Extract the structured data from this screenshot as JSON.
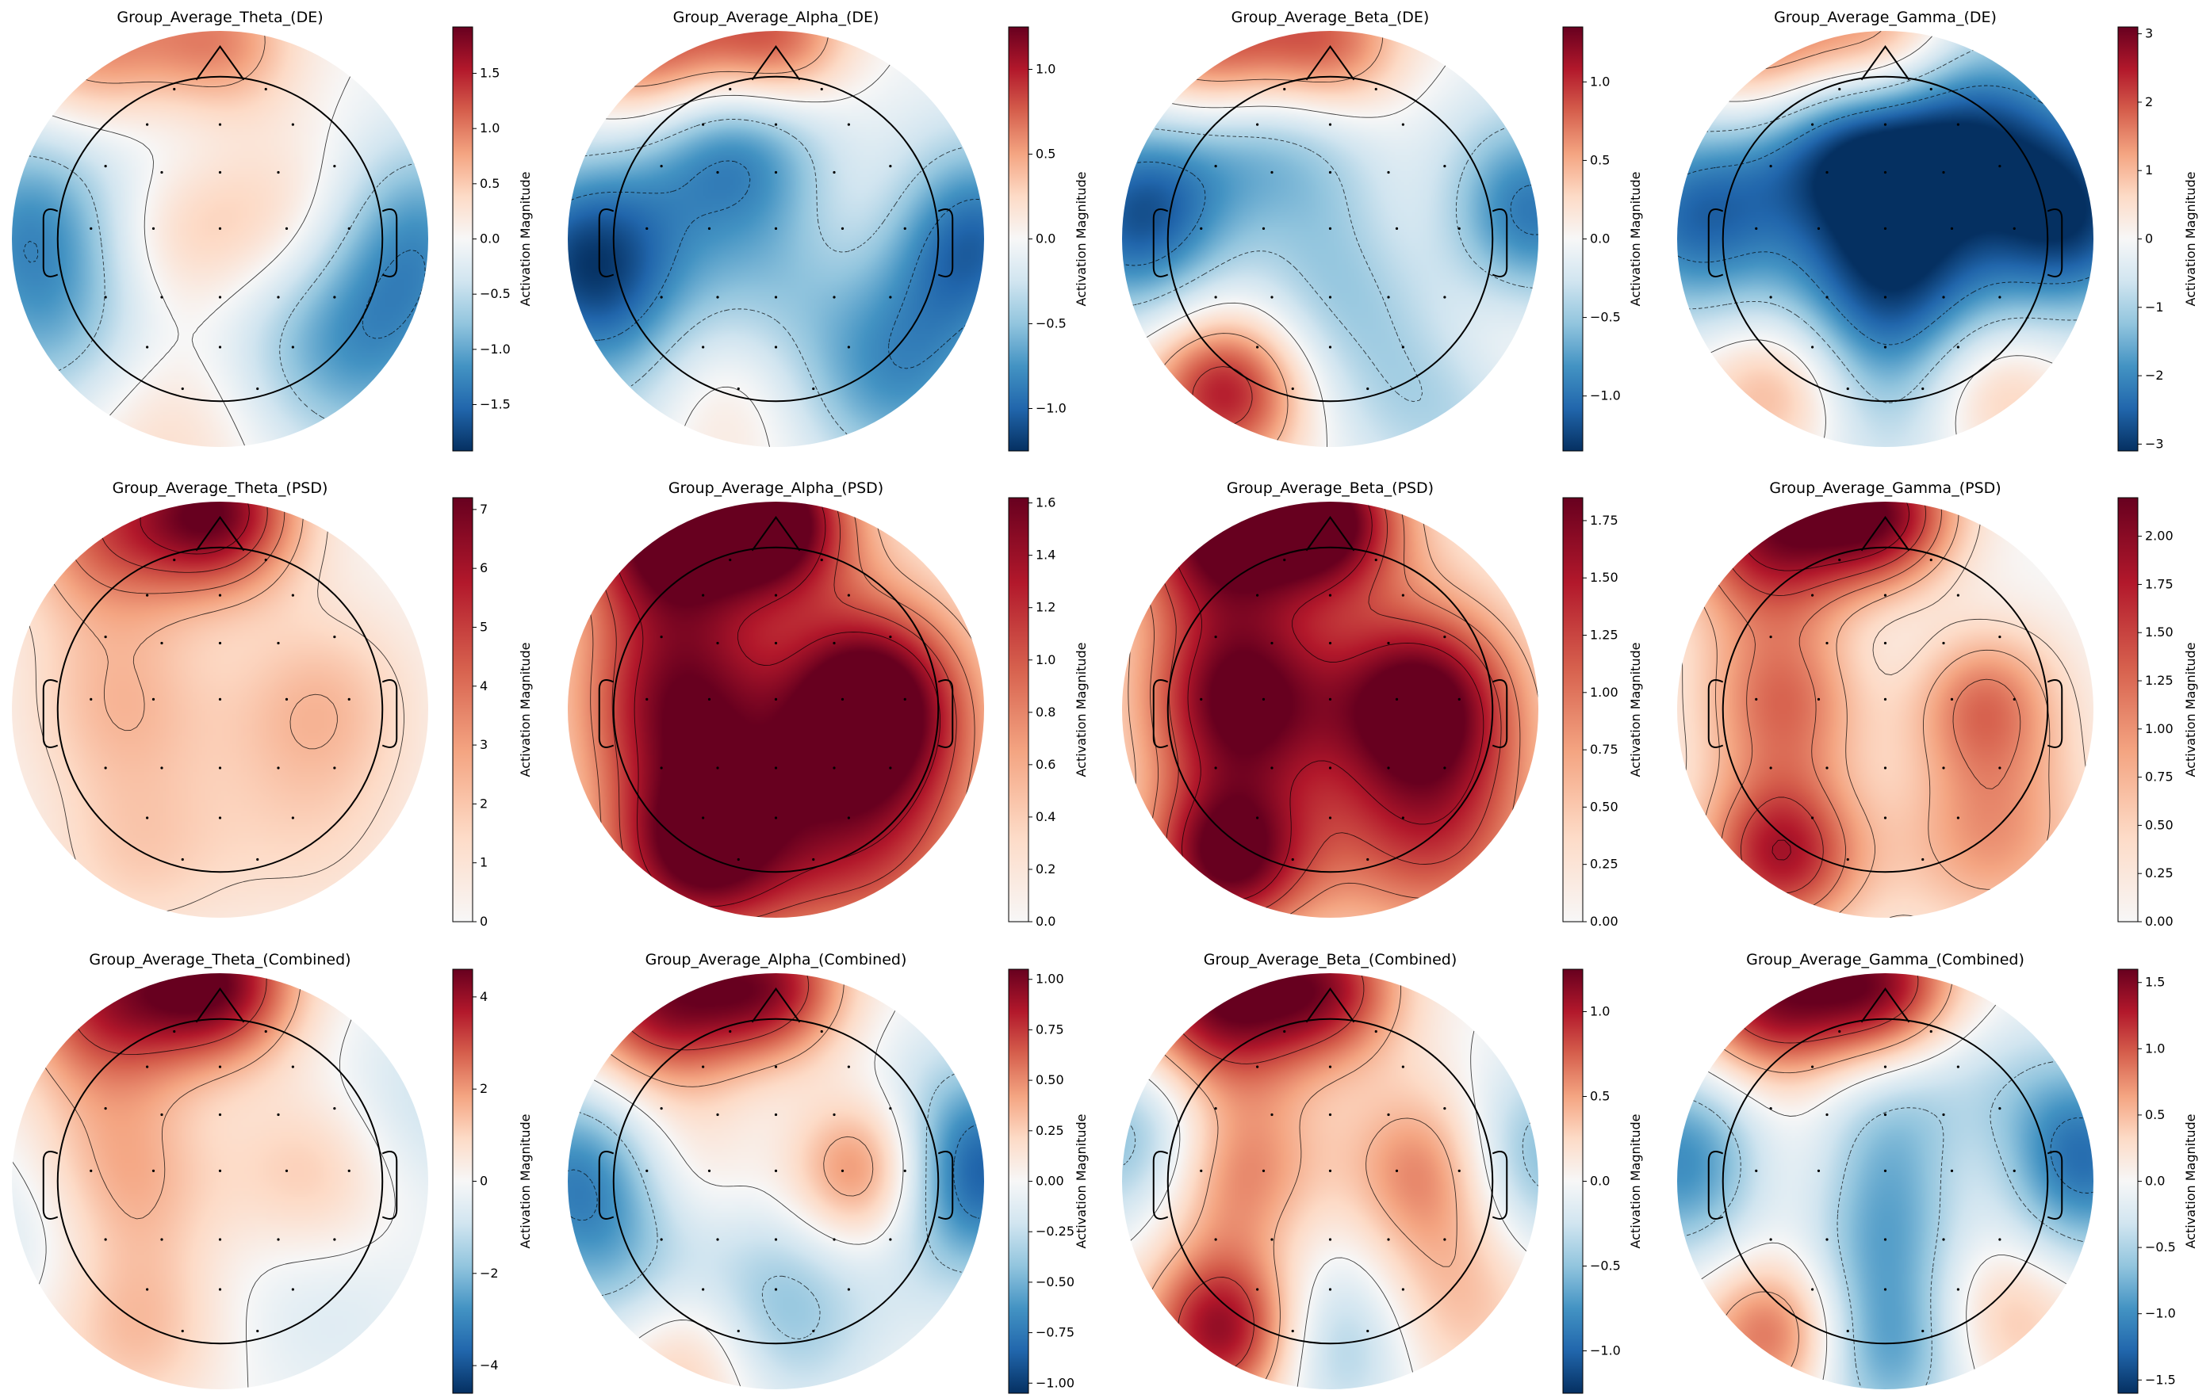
{
  "figure": {
    "description_free": true,
    "colormap": "RdBu_r",
    "colors": {
      "negative_extreme": "#053061",
      "negative_mid": "#4393c3",
      "neutral": "#f7f7f7",
      "positive_mid": "#d6604d",
      "positive_extreme": "#67001f",
      "contour": "#000000"
    }
  },
  "chart_data": [
    {
      "type": "heatmap",
      "title": "Group_Average_Theta_(DE)",
      "colorbar_label": "Activation Magnitude",
      "vmin": -1.92,
      "vmax": 1.92,
      "ticks": [
        1.5,
        1.0,
        0.5,
        0.0,
        -0.5,
        -1.0,
        -1.5
      ],
      "tick_labels": [
        "1.5",
        "1.0",
        "0.5",
        "0.0",
        "−0.5",
        "−1.0",
        "−1.5"
      ],
      "sources": [
        [
          -0.22,
          0.05,
          1.0,
          0.13
        ],
        [
          0.42,
          0.05,
          1.0,
          0.13
        ],
        [
          -0.55,
          0.88,
          1.3,
          0.1
        ],
        [
          0.0,
          0.93,
          1.0,
          0.07
        ],
        [
          -0.3,
          -0.8,
          0.6,
          0.15
        ],
        [
          -0.9,
          0.1,
          -1.0,
          0.12
        ],
        [
          0.9,
          0.05,
          -1.1,
          0.12
        ],
        [
          -0.75,
          -0.45,
          -0.9,
          0.15
        ],
        [
          0.7,
          -0.5,
          -0.9,
          0.15
        ],
        [
          0.0,
          0.1,
          -0.4,
          0.2
        ],
        [
          -0.35,
          0.65,
          -0.7,
          0.12
        ],
        [
          0.3,
          -0.3,
          -0.5,
          0.2
        ]
      ]
    },
    {
      "type": "heatmap",
      "title": "Group_Average_Alpha_(DE)",
      "colorbar_label": "Activation Magnitude",
      "vmin": -1.25,
      "vmax": 1.25,
      "ticks": [
        1.0,
        0.5,
        0.0,
        -0.5,
        -1.0
      ],
      "tick_labels": [
        "1.0",
        "0.5",
        "0.0",
        "−0.5",
        "−1.0"
      ],
      "sources": [
        [
          0.45,
          0.1,
          0.7,
          0.12
        ],
        [
          -0.45,
          0.05,
          0.3,
          0.1
        ],
        [
          -0.55,
          0.88,
          1.1,
          0.1
        ],
        [
          0.0,
          0.93,
          0.9,
          0.07
        ],
        [
          -0.4,
          -0.7,
          0.8,
          0.12
        ],
        [
          -0.9,
          -0.1,
          -1.1,
          0.12
        ],
        [
          0.9,
          0.0,
          -1.1,
          0.12
        ],
        [
          0.0,
          0.0,
          -0.8,
          0.25
        ],
        [
          -0.3,
          0.55,
          -0.8,
          0.12
        ],
        [
          -0.6,
          -0.7,
          -0.7,
          0.12
        ],
        [
          0.6,
          -0.7,
          -0.6,
          0.12
        ]
      ]
    },
    {
      "type": "heatmap",
      "title": "Group_Average_Beta_(DE)",
      "colorbar_label": "Activation Magnitude",
      "vmin": -1.35,
      "vmax": 1.35,
      "ticks": [
        1.0,
        0.5,
        0.0,
        -0.5,
        -1.0
      ],
      "tick_labels": [
        "1.0",
        "0.5",
        "0.0",
        "−0.5",
        "−1.0"
      ],
      "sources": [
        [
          -0.45,
          0.05,
          0.5,
          0.1
        ],
        [
          0.5,
          0.1,
          0.6,
          0.1
        ],
        [
          -0.55,
          0.88,
          1.2,
          0.1
        ],
        [
          -0.5,
          -0.72,
          1.2,
          0.08
        ],
        [
          0.0,
          0.93,
          0.8,
          0.07
        ],
        [
          -0.9,
          0.1,
          -1.2,
          0.12
        ],
        [
          0.9,
          0.1,
          -1.2,
          0.12
        ],
        [
          0.0,
          -0.1,
          -0.7,
          0.2
        ],
        [
          -0.4,
          0.55,
          -0.8,
          0.12
        ],
        [
          0.6,
          -0.7,
          -0.6,
          0.12
        ],
        [
          0.75,
          -0.45,
          0.6,
          0.1
        ]
      ]
    },
    {
      "type": "heatmap",
      "title": "Group_Average_Gamma_(DE)",
      "colorbar_label": "Activation Magnitude",
      "vmin": -3.1,
      "vmax": 3.1,
      "ticks": [
        3,
        2,
        1,
        0,
        -1,
        -2,
        -3
      ],
      "tick_labels": [
        "3",
        "2",
        "1",
        "0",
        "−1",
        "−2",
        "−3"
      ],
      "sources": [
        [
          -0.45,
          0.05,
          1.2,
          0.1
        ],
        [
          0.45,
          0.05,
          0.9,
          0.08
        ],
        [
          -0.55,
          0.88,
          2.3,
          0.1
        ],
        [
          0.0,
          0.93,
          1.8,
          0.07
        ],
        [
          -0.5,
          -0.7,
          1.8,
          0.08
        ],
        [
          0.5,
          -0.7,
          1.5,
          0.08
        ],
        [
          0.0,
          0.0,
          -2.8,
          0.2
        ],
        [
          -0.9,
          0.1,
          -2.4,
          0.12
        ],
        [
          0.9,
          0.1,
          -2.6,
          0.12
        ],
        [
          -0.3,
          0.5,
          -2.0,
          0.12
        ],
        [
          0.4,
          0.5,
          -2.0,
          0.15
        ],
        [
          0.0,
          -0.6,
          -1.2,
          0.2
        ]
      ]
    },
    {
      "type": "heatmap",
      "title": "Group_Average_Theta_(PSD)",
      "colorbar_label": "Activation Magnitude",
      "vmin": 0.0,
      "vmax": 7.2,
      "ticks": [
        7,
        6,
        5,
        4,
        3,
        2,
        1,
        0
      ],
      "tick_labels": [
        "7",
        "6",
        "5",
        "4",
        "3",
        "2",
        "1",
        "0"
      ],
      "sources": [
        [
          0.0,
          0.95,
          6.5,
          0.08
        ],
        [
          -0.55,
          0.88,
          4.0,
          0.1
        ],
        [
          -0.45,
          0.05,
          2.6,
          0.12
        ],
        [
          0.45,
          0.05,
          2.5,
          0.12
        ],
        [
          -0.4,
          -0.7,
          1.6,
          0.1
        ],
        [
          0.4,
          -0.6,
          1.2,
          0.15
        ],
        [
          0.0,
          0.2,
          -0.8,
          0.2
        ]
      ]
    },
    {
      "type": "heatmap",
      "title": "Group_Average_Alpha_(PSD)",
      "colorbar_label": "Activation Magnitude",
      "vmin": 0.0,
      "vmax": 1.62,
      "ticks": [
        1.6,
        1.4,
        1.2,
        1.0,
        0.8,
        0.6,
        0.4,
        0.2,
        0.0
      ],
      "tick_labels": [
        "1.6",
        "1.4",
        "1.2",
        "1.0",
        "0.8",
        "0.6",
        "0.4",
        "0.2",
        "0.0"
      ],
      "sources": [
        [
          0.45,
          0.05,
          1.4,
          0.1
        ],
        [
          -0.45,
          0.05,
          1.1,
          0.12
        ],
        [
          -0.55,
          0.88,
          1.5,
          0.1
        ],
        [
          0.0,
          0.93,
          1.5,
          0.07
        ],
        [
          -0.4,
          -0.7,
          1.3,
          0.1
        ],
        [
          0.4,
          -0.6,
          0.9,
          0.2
        ],
        [
          0.0,
          0.0,
          0.6,
          0.5
        ],
        [
          0.0,
          0.1,
          -0.3,
          0.1
        ]
      ]
    },
    {
      "type": "heatmap",
      "title": "Group_Average_Beta_(PSD)",
      "colorbar_label": "Activation Magnitude",
      "vmin": 0.0,
      "vmax": 1.85,
      "ticks": [
        1.75,
        1.5,
        1.25,
        1.0,
        0.75,
        0.5,
        0.25,
        0.0
      ],
      "tick_labels": [
        "1.75",
        "1.50",
        "1.25",
        "1.00",
        "0.75",
        "0.50",
        "0.25",
        "0.00"
      ],
      "sources": [
        [
          -0.45,
          0.05,
          1.5,
          0.1
        ],
        [
          0.45,
          0.05,
          1.5,
          0.1
        ],
        [
          -0.55,
          0.88,
          1.7,
          0.1
        ],
        [
          0.0,
          0.93,
          1.6,
          0.07
        ],
        [
          -0.5,
          -0.72,
          1.7,
          0.08
        ],
        [
          0.5,
          -0.6,
          1.0,
          0.15
        ],
        [
          0.0,
          0.0,
          0.5,
          0.5
        ]
      ]
    },
    {
      "type": "heatmap",
      "title": "Group_Average_Gamma_(PSD)",
      "colorbar_label": "Activation Magnitude",
      "vmin": 0.0,
      "vmax": 2.2,
      "ticks": [
        2.0,
        1.75,
        1.5,
        1.25,
        1.0,
        0.75,
        0.5,
        0.25,
        0.0
      ],
      "tick_labels": [
        "2.00",
        "1.75",
        "1.50",
        "1.25",
        "1.00",
        "0.75",
        "0.50",
        "0.25",
        "0.00"
      ],
      "sources": [
        [
          -0.45,
          0.05,
          1.5,
          0.1
        ],
        [
          0.45,
          0.05,
          1.4,
          0.08
        ],
        [
          -0.55,
          0.88,
          2.0,
          0.1
        ],
        [
          0.0,
          0.93,
          1.9,
          0.07
        ],
        [
          -0.5,
          -0.7,
          1.8,
          0.08
        ],
        [
          0.5,
          -0.6,
          1.0,
          0.12
        ],
        [
          0.0,
          0.15,
          -0.6,
          0.2
        ]
      ]
    },
    {
      "type": "heatmap",
      "title": "Group_Average_Theta_(Combined)",
      "colorbar_label": "Activation Magnitude",
      "vmin": -4.6,
      "vmax": 4.6,
      "ticks": [
        4,
        2,
        0,
        -2,
        -4
      ],
      "tick_labels": [
        "4",
        "2",
        "0",
        "−2",
        "−4"
      ],
      "sources": [
        [
          -0.45,
          0.05,
          2.4,
          0.12
        ],
        [
          0.45,
          0.05,
          2.2,
          0.12
        ],
        [
          0.0,
          0.95,
          4.2,
          0.08
        ],
        [
          -0.55,
          0.88,
          3.4,
          0.1
        ],
        [
          -0.4,
          -0.7,
          1.5,
          0.1
        ],
        [
          0.0,
          0.2,
          -1.0,
          0.2
        ],
        [
          0.9,
          0.3,
          -1.2,
          0.12
        ],
        [
          -0.9,
          -0.2,
          -1.0,
          0.12
        ],
        [
          0.5,
          -0.5,
          -0.8,
          0.15
        ]
      ]
    },
    {
      "type": "heatmap",
      "title": "Group_Average_Alpha_(Combined)",
      "colorbar_label": "Activation Magnitude",
      "vmin": -1.05,
      "vmax": 1.05,
      "ticks": [
        1.0,
        0.75,
        0.5,
        0.25,
        0.0,
        -0.25,
        -0.5,
        -0.75,
        -1.0
      ],
      "tick_labels": [
        "1.00",
        "0.75",
        "0.50",
        "0.25",
        "0.00",
        "−0.25",
        "−0.50",
        "−0.75",
        "−1.00"
      ],
      "sources": [
        [
          0.45,
          0.05,
          1.0,
          0.08
        ],
        [
          -0.45,
          0.05,
          0.5,
          0.1
        ],
        [
          -0.55,
          0.88,
          0.95,
          0.1
        ],
        [
          0.0,
          0.93,
          0.8,
          0.07
        ],
        [
          -0.4,
          -0.75,
          0.9,
          0.1
        ],
        [
          0.9,
          0.05,
          -1.0,
          0.12
        ],
        [
          -0.9,
          0.0,
          -0.8,
          0.12
        ],
        [
          0.0,
          0.0,
          -0.3,
          0.25
        ],
        [
          -0.1,
          -0.7,
          -0.6,
          0.1
        ],
        [
          -0.6,
          -0.6,
          -0.5,
          0.1
        ]
      ]
    },
    {
      "type": "heatmap",
      "title": "Group_Average_Beta_(Combined)",
      "colorbar_label": "Activation Magnitude",
      "vmin": -1.25,
      "vmax": 1.25,
      "ticks": [
        1.0,
        0.5,
        0.0,
        -0.5,
        -1.0
      ],
      "tick_labels": [
        "1.0",
        "0.5",
        "0.0",
        "−0.5",
        "−1.0"
      ],
      "sources": [
        [
          -0.45,
          0.05,
          0.9,
          0.1
        ],
        [
          0.5,
          0.05,
          1.0,
          0.1
        ],
        [
          -0.55,
          0.88,
          1.2,
          0.1
        ],
        [
          -0.5,
          -0.72,
          1.2,
          0.08
        ],
        [
          0.0,
          0.93,
          0.9,
          0.07
        ],
        [
          -0.9,
          0.2,
          -0.7,
          0.1
        ],
        [
          0.9,
          0.1,
          -0.8,
          0.1
        ],
        [
          0.0,
          -0.1,
          -0.3,
          0.2
        ],
        [
          0.0,
          -0.8,
          -0.5,
          0.08
        ],
        [
          0.6,
          -0.6,
          0.4,
          0.1
        ]
      ]
    },
    {
      "type": "heatmap",
      "title": "Group_Average_Gamma_(Combined)",
      "colorbar_label": "Activation Magnitude",
      "vmin": -1.6,
      "vmax": 1.6,
      "ticks": [
        1.5,
        1.0,
        0.5,
        0.0,
        -0.5,
        -1.0,
        -1.5
      ],
      "tick_labels": [
        "1.5",
        "1.0",
        "0.5",
        "0.0",
        "−0.5",
        "−1.0",
        "−1.5"
      ],
      "sources": [
        [
          -0.45,
          0.05,
          1.1,
          0.1
        ],
        [
          0.45,
          0.05,
          0.9,
          0.08
        ],
        [
          -0.55,
          0.88,
          1.5,
          0.1
        ],
        [
          0.0,
          0.93,
          1.3,
          0.07
        ],
        [
          -0.5,
          -0.72,
          1.2,
          0.08
        ],
        [
          0.5,
          -0.6,
          0.8,
          0.1
        ],
        [
          0.0,
          0.0,
          -1.4,
          0.2
        ],
        [
          -0.9,
          0.1,
          -1.2,
          0.12
        ],
        [
          0.9,
          0.1,
          -1.3,
          0.12
        ],
        [
          0.0,
          -0.8,
          -1.0,
          0.1
        ]
      ]
    }
  ]
}
